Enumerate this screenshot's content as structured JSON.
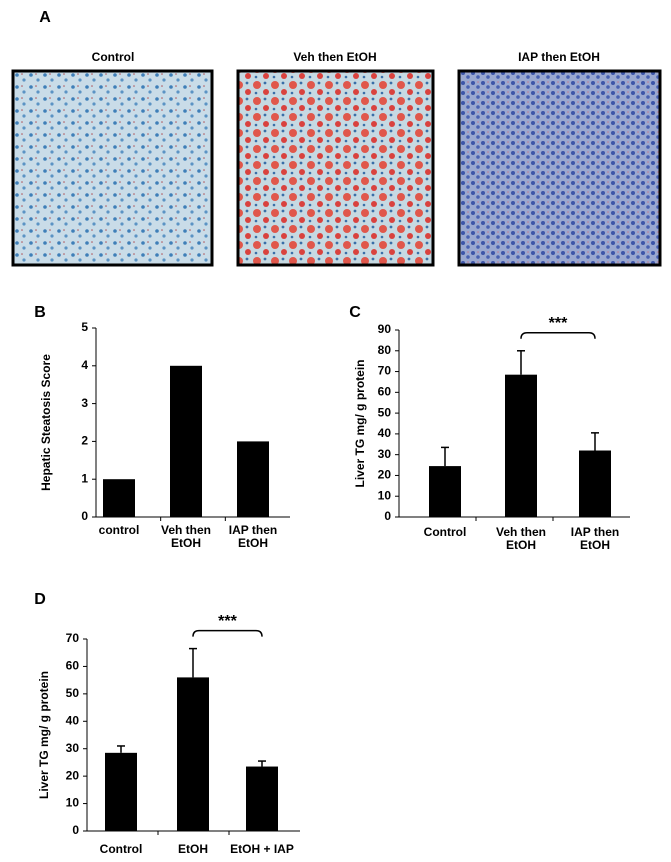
{
  "panel_labels": [
    "A",
    "B",
    "C",
    "D"
  ],
  "images": {
    "captions": [
      "Control",
      "Veh then EtOH",
      "IAP then EtOH"
    ]
  },
  "chart_data": [
    {
      "type": "bar",
      "ylabel": "Hepatic Steatosis Score",
      "categories": [
        "control",
        "Veh then\nEtOH",
        "IAP then\nEtOH"
      ],
      "values": [
        1,
        4,
        2
      ],
      "color": "#000000",
      "ylim": [
        0,
        5
      ],
      "yticks": [
        0,
        1,
        2,
        3,
        4,
        5
      ]
    },
    {
      "type": "bar",
      "ylabel": "Liver TG mg/ g protein",
      "categories": [
        "Control",
        "Veh then\nEtOH",
        "IAP  then\nEtOH"
      ],
      "values": [
        24.5,
        68.5,
        32
      ],
      "errors": [
        9,
        11.5,
        8.5
      ],
      "color": "#000000",
      "annotation": "***",
      "ylim": [
        0,
        90
      ],
      "yticks": [
        0,
        10,
        20,
        30,
        40,
        50,
        60,
        70,
        80,
        90
      ]
    },
    {
      "type": "bar",
      "ylabel": "Liver TG mg/ g protein",
      "categories": [
        "Control",
        "EtOH",
        "EtOH + IAP"
      ],
      "values": [
        28.5,
        56,
        23.5
      ],
      "errors": [
        2.5,
        10.5,
        2
      ],
      "color": "#000000",
      "annotation": "***",
      "ylim": [
        0,
        70
      ],
      "yticks": [
        0,
        10,
        20,
        30,
        40,
        50,
        60,
        70
      ]
    }
  ]
}
